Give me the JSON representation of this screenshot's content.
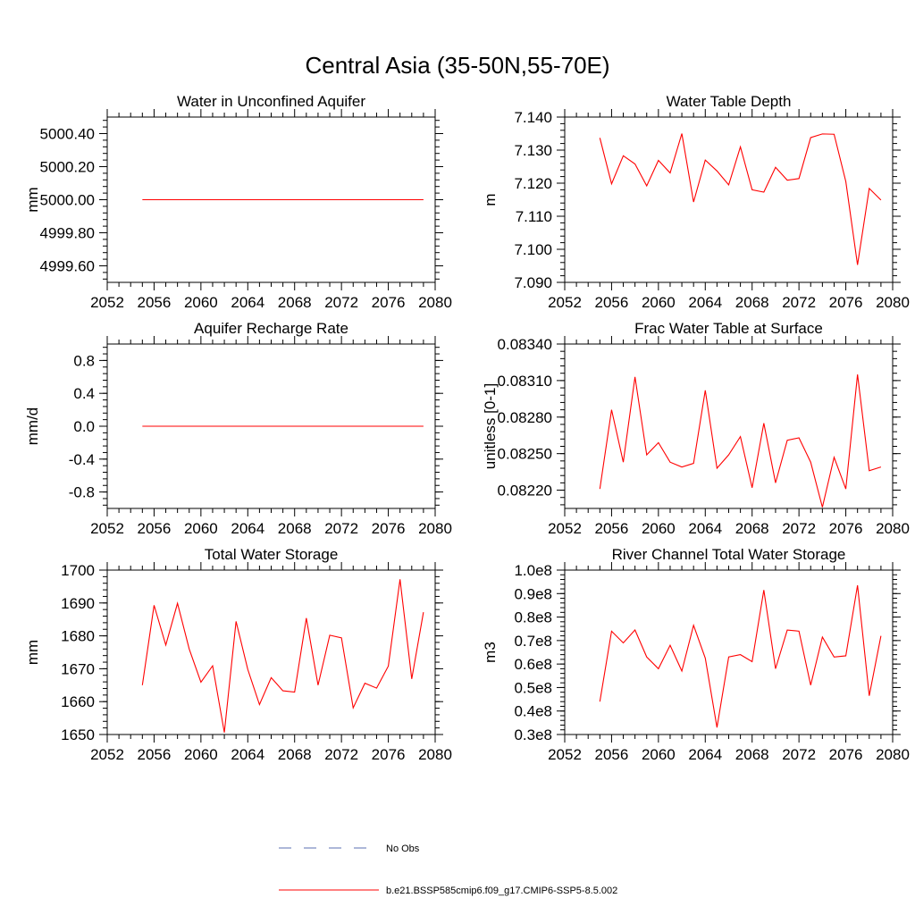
{
  "title": "Central Asia (35-50N,55-70E)",
  "legend": {
    "placement": "bottom-center",
    "entries": [
      {
        "label": "No Obs",
        "color": "#5b6fb0",
        "style": "dashed"
      },
      {
        "label": "b.e21.BSSP585cmip6.f09_g17.CMIP6-SSP5-8.5.002",
        "color": "#ff0000",
        "style": "solid"
      }
    ]
  },
  "chart_data": [
    {
      "type": "line",
      "title": "Water in Unconfined Aquifer",
      "ylabel": "mm",
      "xlim": [
        2052,
        2080
      ],
      "ylim": [
        4999.5,
        5000.5
      ],
      "xticks": [
        2052,
        2056,
        2060,
        2064,
        2068,
        2072,
        2076,
        2080
      ],
      "xtick_labels": [
        "2052",
        "2056",
        "2060",
        "2064",
        "2068",
        "2072",
        "2076",
        "2080"
      ],
      "yticks": [
        4999.6,
        4999.8,
        5000.0,
        5000.2,
        5000.4
      ],
      "ytick_labels": [
        "4999.60",
        "4999.80",
        "5000.00",
        "5000.20",
        "5000.40"
      ],
      "x": [
        2055,
        2056,
        2057,
        2058,
        2059,
        2060,
        2061,
        2062,
        2063,
        2064,
        2065,
        2066,
        2067,
        2068,
        2069,
        2070,
        2071,
        2072,
        2073,
        2074,
        2075,
        2076,
        2077,
        2078,
        2079
      ],
      "series": [
        {
          "color": "#ff0000",
          "values": [
            5000.0,
            5000.0,
            5000.0,
            5000.0,
            5000.0,
            5000.0,
            5000.0,
            5000.0,
            5000.0,
            5000.0,
            5000.0,
            5000.0,
            5000.0,
            5000.0,
            5000.0,
            5000.0,
            5000.0,
            5000.0,
            5000.0,
            5000.0,
            5000.0,
            5000.0,
            5000.0,
            5000.0,
            5000.0
          ]
        }
      ]
    },
    {
      "type": "line",
      "title": "Water Table Depth",
      "ylabel": "m",
      "xlim": [
        2052,
        2080
      ],
      "ylim": [
        7.09,
        7.14
      ],
      "xticks": [
        2052,
        2056,
        2060,
        2064,
        2068,
        2072,
        2076,
        2080
      ],
      "xtick_labels": [
        "2052",
        "2056",
        "2060",
        "2064",
        "2068",
        "2072",
        "2076",
        "2080"
      ],
      "yticks": [
        7.09,
        7.1,
        7.11,
        7.12,
        7.13,
        7.14
      ],
      "ytick_labels": [
        "7.090",
        "7.100",
        "7.110",
        "7.120",
        "7.130",
        "7.140"
      ],
      "x": [
        2055,
        2056,
        2057,
        2058,
        2059,
        2060,
        2061,
        2062,
        2063,
        2064,
        2065,
        2066,
        2067,
        2068,
        2069,
        2070,
        2071,
        2072,
        2073,
        2074,
        2075,
        2076,
        2077,
        2078,
        2079
      ],
      "series": [
        {
          "color": "#ff0000",
          "values": [
            7.1337,
            7.1198,
            7.1283,
            7.1258,
            7.1192,
            7.1269,
            7.1231,
            7.135,
            7.1143,
            7.127,
            7.1237,
            7.1195,
            7.131,
            7.118,
            7.1173,
            7.1248,
            7.1209,
            7.1214,
            7.1338,
            7.1349,
            7.1348,
            7.1205,
            7.0953,
            7.1184,
            7.1149
          ]
        }
      ]
    },
    {
      "type": "line",
      "title": "Aquifer Recharge Rate",
      "ylabel": "mm/d",
      "xlim": [
        2052,
        2080
      ],
      "ylim": [
        -1.0,
        1.0
      ],
      "xticks": [
        2052,
        2056,
        2060,
        2064,
        2068,
        2072,
        2076,
        2080
      ],
      "xtick_labels": [
        "2052",
        "2056",
        "2060",
        "2064",
        "2068",
        "2072",
        "2076",
        "2080"
      ],
      "yticks": [
        -0.8,
        -0.4,
        0.0,
        0.4,
        0.8
      ],
      "ytick_labels": [
        "-0.8",
        "-0.4",
        "0.0",
        "0.4",
        "0.8"
      ],
      "x": [
        2055,
        2056,
        2057,
        2058,
        2059,
        2060,
        2061,
        2062,
        2063,
        2064,
        2065,
        2066,
        2067,
        2068,
        2069,
        2070,
        2071,
        2072,
        2073,
        2074,
        2075,
        2076,
        2077,
        2078,
        2079
      ],
      "series": [
        {
          "color": "#ff0000",
          "values": [
            0,
            0,
            0,
            0,
            0,
            0,
            0,
            0,
            0,
            0,
            0,
            0,
            0,
            0,
            0,
            0,
            0,
            0,
            0,
            0,
            0,
            0,
            0,
            0,
            0
          ]
        }
      ]
    },
    {
      "type": "line",
      "title": "Frac Water Table at Surface",
      "ylabel": "unitless [0-1]",
      "xlim": [
        2052,
        2080
      ],
      "ylim": [
        0.08205,
        0.0834
      ],
      "xticks": [
        2052,
        2056,
        2060,
        2064,
        2068,
        2072,
        2076,
        2080
      ],
      "xtick_labels": [
        "2052",
        "2056",
        "2060",
        "2064",
        "2068",
        "2072",
        "2076",
        "2080"
      ],
      "yticks": [
        0.0822,
        0.0825,
        0.0828,
        0.0831,
        0.0834
      ],
      "ytick_labels": [
        "0.08220",
        "0.08250",
        "0.08280",
        "0.08310",
        "0.08340"
      ],
      "x": [
        2055,
        2056,
        2057,
        2058,
        2059,
        2060,
        2061,
        2062,
        2063,
        2064,
        2065,
        2066,
        2067,
        2068,
        2069,
        2070,
        2071,
        2072,
        2073,
        2074,
        2075,
        2076,
        2077,
        2078,
        2079
      ],
      "series": [
        {
          "color": "#ff0000",
          "values": [
            0.08221,
            0.08286,
            0.08243,
            0.08313,
            0.08249,
            0.08259,
            0.08243,
            0.08239,
            0.08242,
            0.08302,
            0.08238,
            0.08249,
            0.08264,
            0.08222,
            0.08275,
            0.08226,
            0.08261,
            0.08263,
            0.08243,
            0.08206,
            0.08247,
            0.08221,
            0.08315,
            0.08236,
            0.08239
          ]
        }
      ]
    },
    {
      "type": "line",
      "title": "Total Water Storage",
      "ylabel": "mm",
      "xlim": [
        2052,
        2080
      ],
      "ylim": [
        1650,
        1700
      ],
      "xticks": [
        2052,
        2056,
        2060,
        2064,
        2068,
        2072,
        2076,
        2080
      ],
      "xtick_labels": [
        "2052",
        "2056",
        "2060",
        "2064",
        "2068",
        "2072",
        "2076",
        "2080"
      ],
      "yticks": [
        1650,
        1660,
        1670,
        1680,
        1690,
        1700
      ],
      "ytick_labels": [
        "1650",
        "1660",
        "1670",
        "1680",
        "1690",
        "1700"
      ],
      "x": [
        2055,
        2056,
        2057,
        2058,
        2059,
        2060,
        2061,
        2062,
        2063,
        2064,
        2065,
        2066,
        2067,
        2068,
        2069,
        2070,
        2071,
        2072,
        2073,
        2074,
        2075,
        2076,
        2077,
        2078,
        2079
      ],
      "series": [
        {
          "color": "#ff0000",
          "values": [
            1665.0,
            1689.3,
            1677.2,
            1689.9,
            1676.0,
            1665.9,
            1670.9,
            1650.6,
            1684.4,
            1669.8,
            1659.1,
            1667.3,
            1663.3,
            1662.9,
            1685.4,
            1665.0,
            1680.2,
            1679.4,
            1658.1,
            1665.6,
            1664.1,
            1670.8,
            1697.2,
            1666.9,
            1687.2
          ]
        }
      ]
    },
    {
      "type": "line",
      "title": "River Channel Total Water Storage",
      "ylabel": "m3",
      "xlim": [
        2052,
        2080
      ],
      "ylim": [
        30000000,
        100000000
      ],
      "xticks": [
        2052,
        2056,
        2060,
        2064,
        2068,
        2072,
        2076,
        2080
      ],
      "xtick_labels": [
        "2052",
        "2056",
        "2060",
        "2064",
        "2068",
        "2072",
        "2076",
        "2080"
      ],
      "yticks": [
        30000000,
        40000000,
        50000000,
        60000000,
        70000000,
        80000000,
        90000000,
        100000000
      ],
      "ytick_labels": [
        "0.3e8",
        "0.4e8",
        "0.5e8",
        "0.6e8",
        "0.7e8",
        "0.8e8",
        "0.9e8",
        "1.0e8"
      ],
      "x": [
        2055,
        2056,
        2057,
        2058,
        2059,
        2060,
        2061,
        2062,
        2063,
        2064,
        2065,
        2066,
        2067,
        2068,
        2069,
        2070,
        2071,
        2072,
        2073,
        2074,
        2075,
        2076,
        2077,
        2078,
        2079
      ],
      "series": [
        {
          "color": "#ff0000",
          "values": [
            44000000,
            74000000,
            69000000,
            74500000,
            63000000,
            58000000,
            68000000,
            57000000,
            76500000,
            62500000,
            33000000,
            63000000,
            64000000,
            61000000,
            91500000,
            58000000,
            74500000,
            74000000,
            51000000,
            71500000,
            63000000,
            63500000,
            93500000,
            46500000,
            72000000
          ]
        }
      ]
    }
  ]
}
